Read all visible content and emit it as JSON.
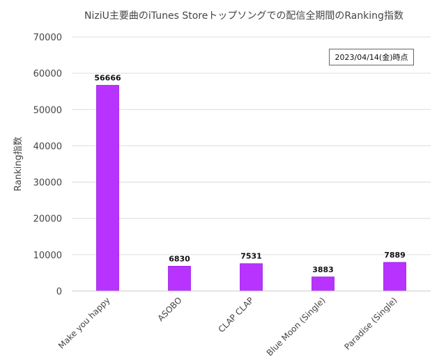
{
  "chart_data": {
    "type": "bar",
    "title": "NiziU主要曲のiTunes Storeトップソングでの配信全期間のRanking指数",
    "annotation": "2023/04/14(金)時点",
    "ylabel": "Ranking指数",
    "xlabel": "",
    "categories": [
      "Make you happy",
      "ASOBO",
      "CLAP CLAP",
      "Blue Moon (Single)",
      "Paradise (Single)"
    ],
    "values": [
      56666,
      6830,
      7531,
      3883,
      7889
    ],
    "data_labels": [
      "56666",
      "6830",
      "7531",
      "3883",
      "7889"
    ],
    "ylim": [
      0,
      70000
    ],
    "yticks": [
      0,
      10000,
      20000,
      30000,
      40000,
      50000,
      60000,
      70000
    ],
    "ytick_labels": [
      "0",
      "10000",
      "20000",
      "30000",
      "40000",
      "50000",
      "60000",
      "70000"
    ],
    "grid": true,
    "bar_color": "#b833ff",
    "bar_edge_color": "#9a1de0"
  }
}
